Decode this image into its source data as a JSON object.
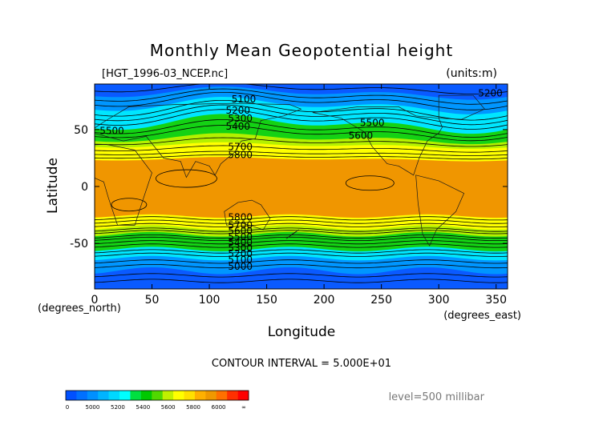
{
  "chart_data": {
    "type": "heatmap",
    "title": "Monthly Mean Geopotential height",
    "file_label": "[HGT_1996-03_NCEP.nc]",
    "units_label": "(units:m)",
    "xlabel": "Longitude",
    "x_units": "(degrees_east)",
    "ylabel": "Latitude",
    "y_units": "(degrees_north)",
    "xlim": [
      0,
      360
    ],
    "ylim": [
      -90,
      90
    ],
    "x_ticks": [
      0,
      50,
      100,
      150,
      200,
      250,
      300,
      350
    ],
    "y_ticks": [
      50,
      0,
      -50
    ],
    "contour_interval_text": "CONTOUR INTERVAL = 5.000E+01",
    "level_text": "level=500 millibar",
    "colorbar": {
      "colors": [
        "#0050ff",
        "#0070ff",
        "#0090ff",
        "#00b4ff",
        "#00d8ff",
        "#00ffff",
        "#00e040",
        "#00c800",
        "#50d800",
        "#c0f000",
        "#ffff00",
        "#ffe000",
        "#ffb000",
        "#f09800",
        "#ff7000",
        "#ff3000",
        "#ff0000"
      ],
      "labels": [
        "0",
        "5000",
        "5200",
        "5400",
        "5600",
        "5800",
        "6000",
        "∞"
      ]
    },
    "band_colors": {
      "polar_dark": "#0a5aff",
      "polar": "#0096ff",
      "cyan": "#00e6ff",
      "green": "#14d214",
      "lime": "#b4f000",
      "yellow": "#ffff00",
      "orange": "#f09600"
    },
    "contour_labels": [
      {
        "text": "5100",
        "lon": 130,
        "lat": 74
      },
      {
        "text": "5200",
        "lon": 125,
        "lat": 64
      },
      {
        "text": "5300",
        "lon": 127,
        "lat": 57
      },
      {
        "text": "5400",
        "lon": 125,
        "lat": 50
      },
      {
        "text": "5500",
        "lon": 15,
        "lat": 46
      },
      {
        "text": "5500",
        "lon": 242,
        "lat": 53
      },
      {
        "text": "5600",
        "lon": 232,
        "lat": 42
      },
      {
        "text": "5200",
        "lon": 345,
        "lat": 79
      },
      {
        "text": "5700",
        "lon": 127,
        "lat": 32
      },
      {
        "text": "5800",
        "lon": 127,
        "lat": 25
      },
      {
        "text": "5800",
        "lon": 127,
        "lat": -30
      },
      {
        "text": "5700",
        "lon": 127,
        "lat": -37
      },
      {
        "text": "5600",
        "lon": 127,
        "lat": -42
      },
      {
        "text": "5500",
        "lon": 127,
        "lat": -47
      },
      {
        "text": "5400",
        "lon": 127,
        "lat": -52
      },
      {
        "text": "5300",
        "lon": 127,
        "lat": -57
      },
      {
        "text": "5200",
        "lon": 127,
        "lat": -62
      },
      {
        "text": "5100",
        "lon": 127,
        "lat": -67
      },
      {
        "text": "5000",
        "lon": 127,
        "lat": -73
      }
    ]
  }
}
